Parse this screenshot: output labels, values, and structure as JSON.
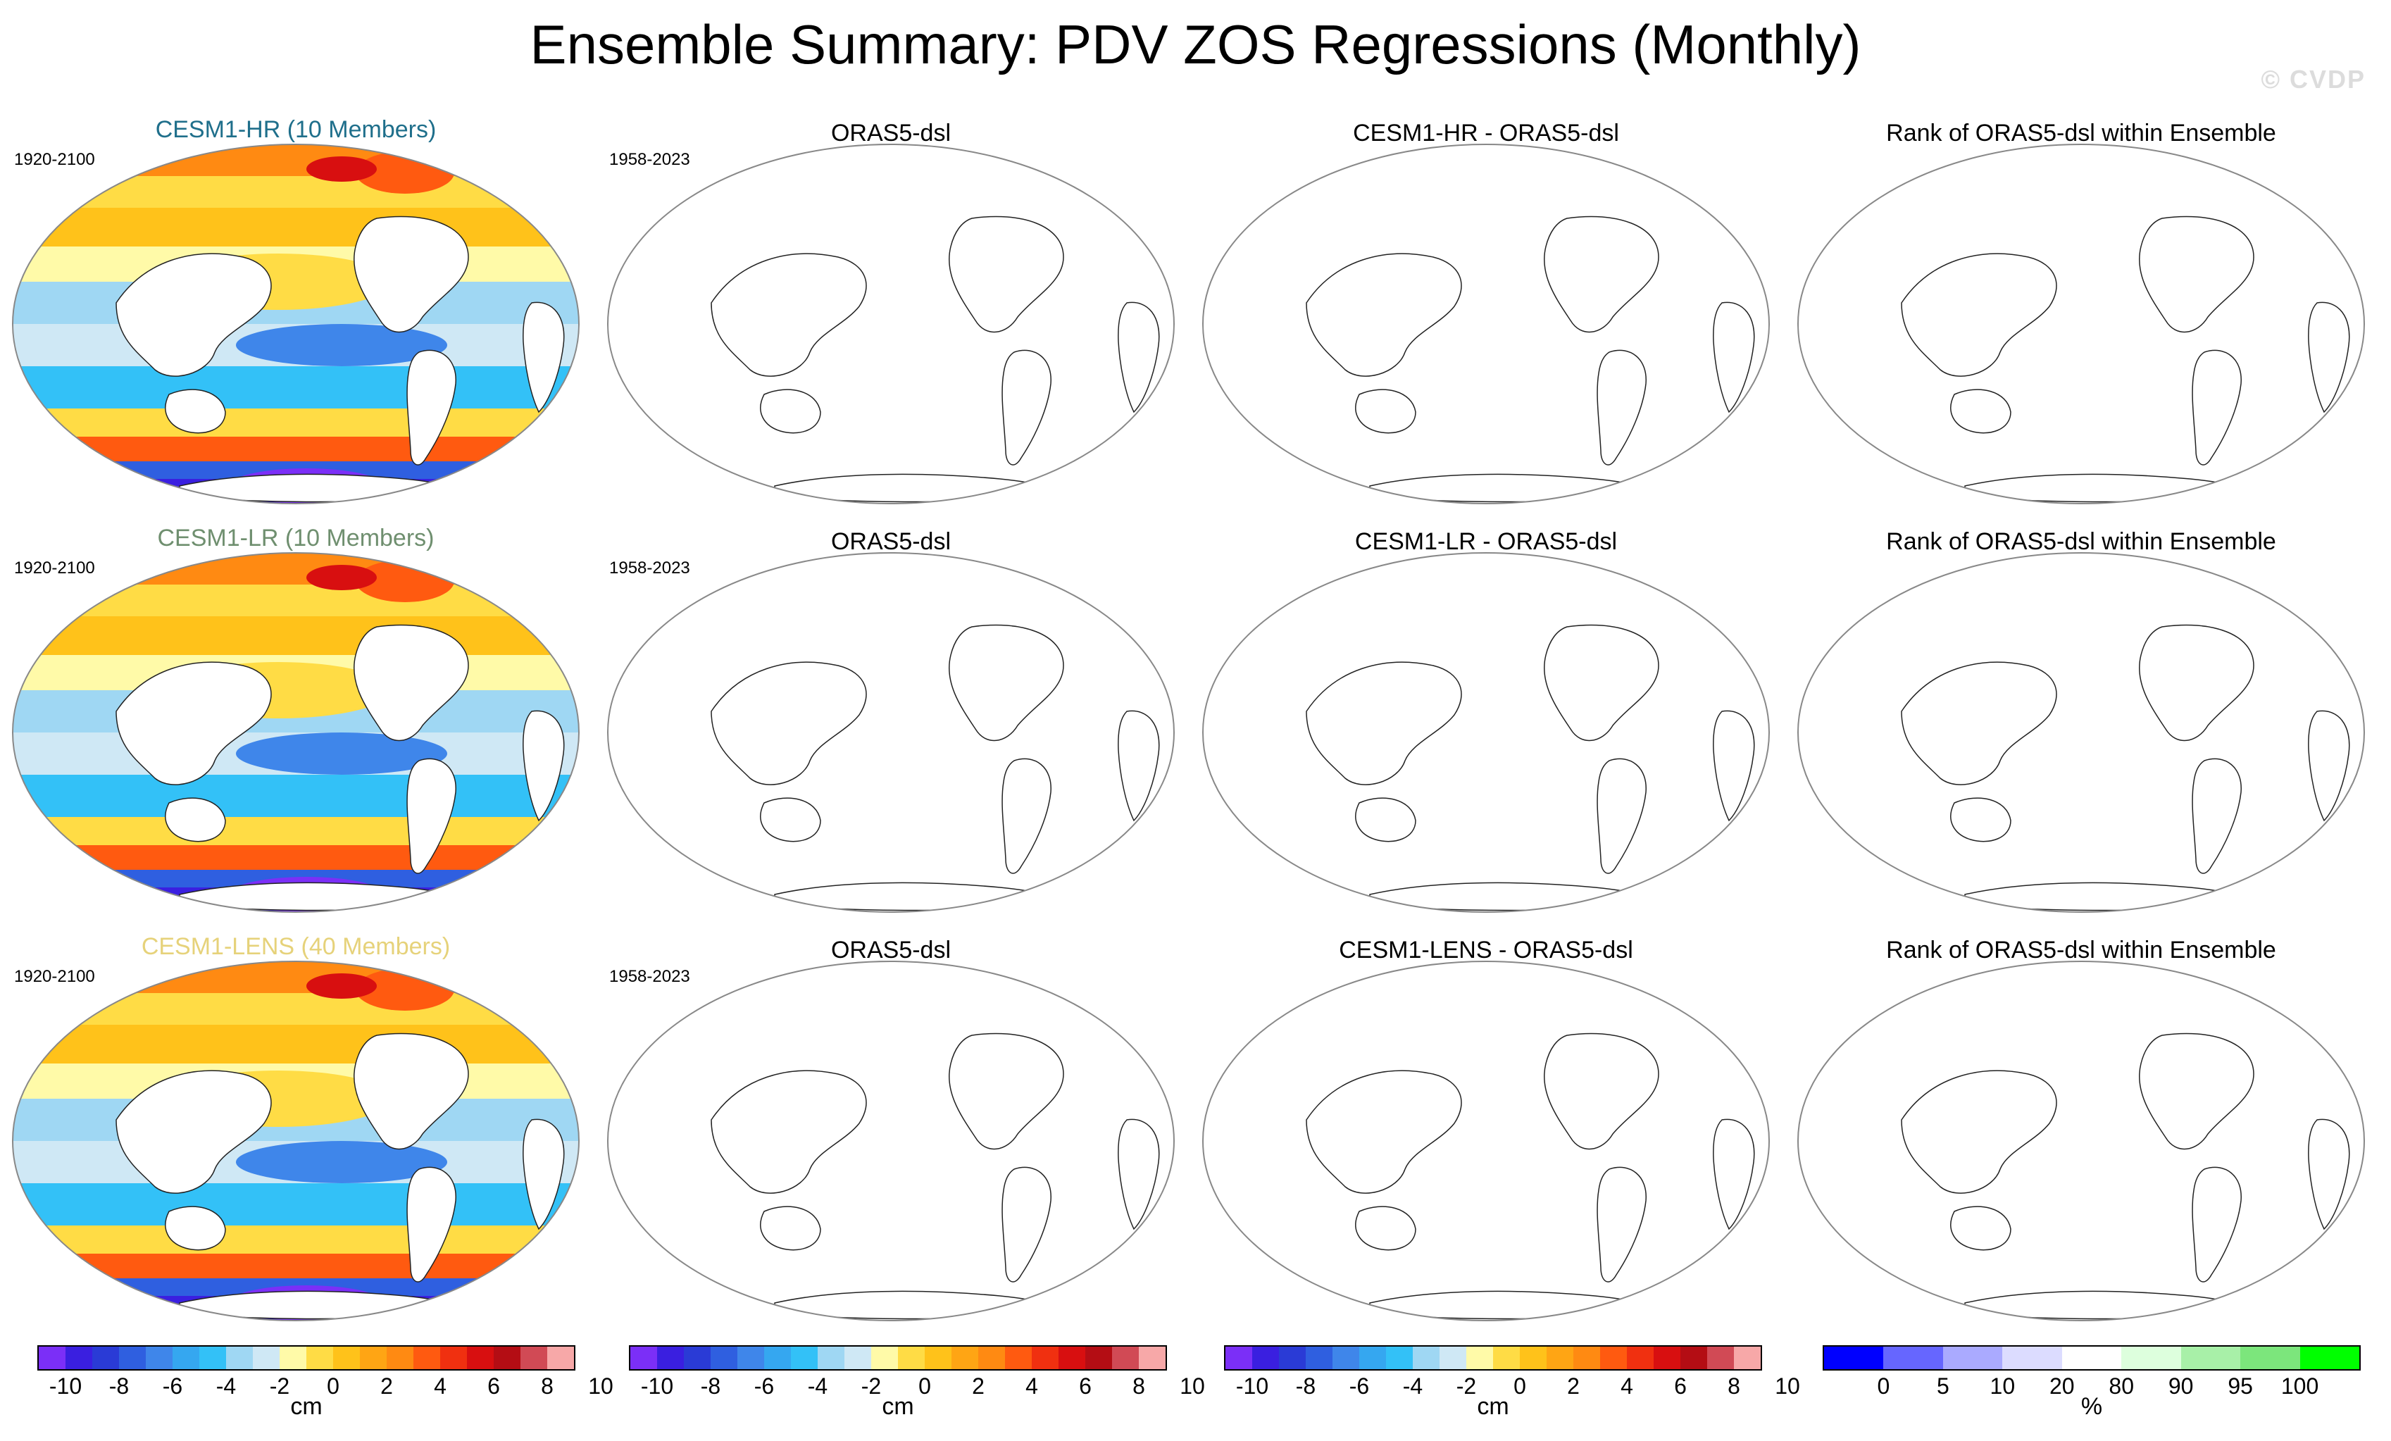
{
  "title": "Ensemble Summary: PDV ZOS Regressions (Monthly)",
  "watermark": "© CVDP",
  "rows": [
    {
      "ensemble": "CESM1-HR (10 Members)",
      "ensemble_color": "#1f6f8b",
      "ensemble_period": "1920-2100",
      "obs_title": "ORAS5-dsl",
      "obs_period": "1958-2023",
      "diff_title": "CESM1-HR - ORAS5-dsl",
      "rank_title": "Rank of ORAS5-dsl within Ensemble"
    },
    {
      "ensemble": "CESM1-LR (10 Members)",
      "ensemble_color": "#6f8f6f",
      "ensemble_period": "1920-2100",
      "obs_title": "ORAS5-dsl",
      "obs_period": "1958-2023",
      "diff_title": "CESM1-LR - ORAS5-dsl",
      "rank_title": "Rank of ORAS5-dsl within Ensemble"
    },
    {
      "ensemble": "CESM1-LENS (40 Members)",
      "ensemble_color": "#e6d27a",
      "ensemble_period": "1920-2100",
      "obs_title": "ORAS5-dsl",
      "obs_period": "1958-2023",
      "diff_title": "CESM1-LENS - ORAS5-dsl",
      "rank_title": "Rank of ORAS5-dsl within Ensemble"
    }
  ],
  "colorbar_cm": {
    "unit": "cm",
    "ticks": [
      "-10",
      "-8",
      "-6",
      "-4",
      "-2",
      "0",
      "2",
      "4",
      "6",
      "8",
      "10"
    ],
    "colors": [
      "#7b2ff7",
      "#3a1fe0",
      "#2a3bd6",
      "#2f5fe0",
      "#3f86ea",
      "#35a7f0",
      "#33c1f7",
      "#9fd7f3",
      "#cfe8f5",
      "#fffaa8",
      "#ffdc45",
      "#ffc21a",
      "#ffa514",
      "#ff8a12",
      "#ff5a10",
      "#f03010",
      "#d80f10",
      "#b40d14",
      "#d14a55",
      "#f7a8a8"
    ]
  },
  "colorbar_rank": {
    "unit": "%",
    "ticks": [
      "0",
      "5",
      "10",
      "20",
      "80",
      "90",
      "95",
      "100"
    ],
    "colors": [
      "#0000ff",
      "#6666ff",
      "#aaaaff",
      "#dcdcff",
      "#ffffff",
      "#ddffdd",
      "#a8f0a8",
      "#7ce67c",
      "#00ff00"
    ]
  }
}
